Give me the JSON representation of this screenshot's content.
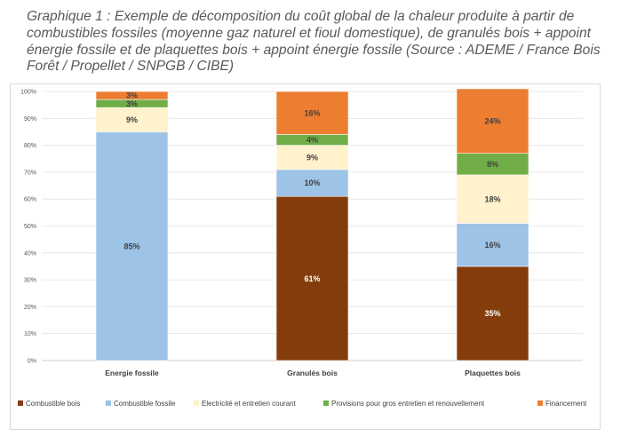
{
  "caption": "Graphique 1 : Exemple de décomposition du coût global de la chaleur produite à partir de combustibles fossiles (moyenne gaz naturel et fioul domestique), de granulés bois + appoint énergie fossile et de plaquettes bois + appoint énergie fossile (Source : ADEME / France Bois Forêt / Propellet / SNPGB / CIBE)",
  "chart_data": {
    "type": "bar",
    "stacked": true,
    "percent": true,
    "categories": [
      "Energie fossile",
      "Granulés bois",
      "Plaquettes bois"
    ],
    "ylim": [
      0,
      100
    ],
    "yticks": [
      "0%",
      "10%",
      "20%",
      "30%",
      "40%",
      "50%",
      "60%",
      "70%",
      "80%",
      "90%",
      "100%"
    ],
    "grid": true,
    "legend_position": "bottom",
    "series": [
      {
        "name": "Combustible bois",
        "color": "#843c0c",
        "values": [
          0,
          61,
          35
        ],
        "labels": [
          "",
          "61%",
          "35%"
        ]
      },
      {
        "name": "Combustible fossile",
        "color": "#9dc3e6",
        "values": [
          85,
          10,
          16
        ],
        "labels": [
          "85%",
          "10%",
          "16%"
        ]
      },
      {
        "name": "Electricité et entretien courant",
        "color": "#fff2cc",
        "values": [
          9,
          9,
          18
        ],
        "labels": [
          "9%",
          "9%",
          "18%"
        ]
      },
      {
        "name": "Provisions pour gros entretien et renouvellement",
        "color": "#70ad47",
        "values": [
          3,
          4,
          8
        ],
        "labels": [
          "3%",
          "4%",
          "8%"
        ]
      },
      {
        "name": "Financement",
        "color": "#ed7d31",
        "values": [
          3,
          16,
          24
        ],
        "labels": [
          "3%",
          "16%",
          "24%"
        ]
      }
    ]
  }
}
